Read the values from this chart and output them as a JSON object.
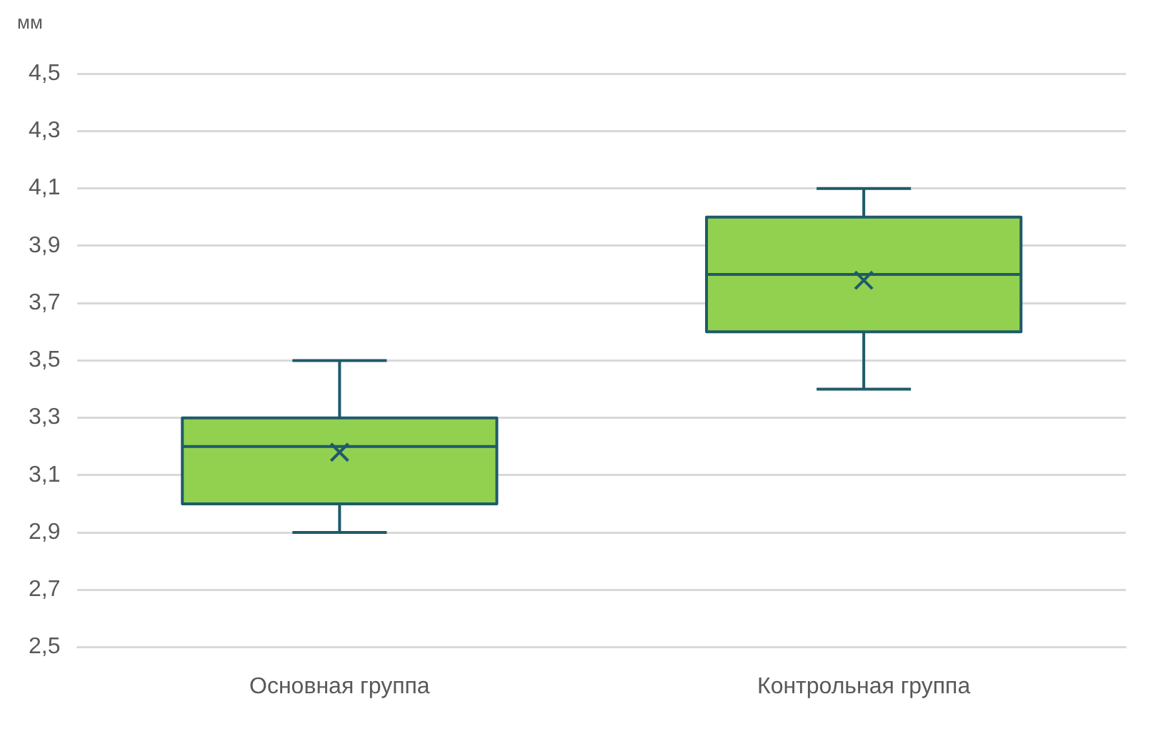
{
  "chart_data": {
    "type": "box",
    "ylabel": "мм",
    "categories": [
      "Основная группа",
      "Контрольная группа"
    ],
    "color": "#92d050",
    "boxes": [
      {
        "low": 2.9,
        "q1": 3.0,
        "median": 3.2,
        "q3": 3.3,
        "high": 3.5,
        "mean": 3.18
      },
      {
        "low": 3.4,
        "q1": 3.6,
        "median": 3.8,
        "q3": 4.0,
        "high": 4.1,
        "mean": 3.78
      }
    ],
    "ylim": [
      2.5,
      4.5
    ],
    "yticks": [
      {
        "value": 2.5,
        "label": "2,5"
      },
      {
        "value": 2.7,
        "label": "2,7"
      },
      {
        "value": 2.9,
        "label": "2,9"
      },
      {
        "value": 3.1,
        "label": "3,1"
      },
      {
        "value": 3.3,
        "label": "3,3"
      },
      {
        "value": 3.5,
        "label": "3,5"
      },
      {
        "value": 3.7,
        "label": "3,7"
      },
      {
        "value": 3.9,
        "label": "3,9"
      },
      {
        "value": 4.1,
        "label": "4,1"
      },
      {
        "value": 4.3,
        "label": "4,3"
      },
      {
        "value": 4.5,
        "label": "4,5"
      }
    ],
    "grid": "y",
    "legend": false
  }
}
